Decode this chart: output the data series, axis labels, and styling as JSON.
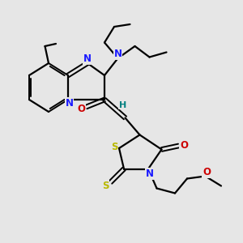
{
  "bg_color": "#e6e6e6",
  "atom_colors": {
    "C": "#000000",
    "N": "#1a1aff",
    "O": "#cc0000",
    "S": "#b8b800",
    "H": "#008080"
  },
  "figsize": [
    3.0,
    3.0
  ],
  "dpi": 100
}
